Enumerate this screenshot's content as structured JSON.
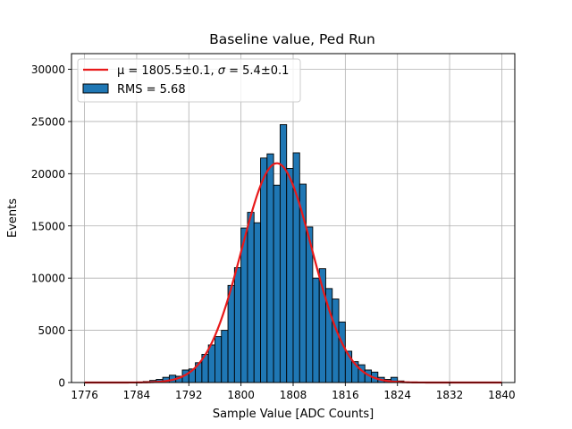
{
  "chart_data": {
    "type": "bar",
    "title": "Baseline value, Ped Run",
    "xlabel": "Sample Value [ADC Counts]",
    "ylabel": "Events",
    "xlim": [
      1774,
      1842
    ],
    "ylim": [
      0,
      31500
    ],
    "xticks": [
      1776,
      1784,
      1792,
      1800,
      1808,
      1816,
      1824,
      1832,
      1840
    ],
    "yticks": [
      0,
      5000,
      10000,
      15000,
      20000,
      25000,
      30000
    ],
    "grid": true,
    "legend_position": "top-left",
    "legend": {
      "fit_prefix": "μ = 1805.5±0.1, ",
      "fit_sigma_symbol": "σ",
      "fit_suffix": " = 5.4±0.1",
      "hist_label": "RMS = 5.68"
    },
    "histogram": {
      "bin_width": 1,
      "bin_starts": [
        1785,
        1786,
        1787,
        1788,
        1789,
        1790,
        1791,
        1792,
        1793,
        1794,
        1795,
        1796,
        1797,
        1798,
        1799,
        1800,
        1801,
        1802,
        1803,
        1804,
        1805,
        1806,
        1807,
        1808,
        1809,
        1810,
        1811,
        1812,
        1813,
        1814,
        1815,
        1816,
        1817,
        1818,
        1819,
        1820,
        1821,
        1822,
        1823,
        1824
      ],
      "counts": [
        100,
        200,
        300,
        500,
        700,
        600,
        1200,
        1300,
        1900,
        2700,
        3600,
        4400,
        5000,
        9300,
        11000,
        14800,
        16300,
        15300,
        21500,
        21900,
        18900,
        24700,
        20500,
        22000,
        19000,
        14900,
        10000,
        10900,
        9000,
        8000,
        5800,
        3000,
        2000,
        1700,
        1200,
        1000,
        500,
        300,
        500,
        150
      ],
      "color": "#1f77b4",
      "edge_color": "#000000"
    },
    "fit": {
      "mu": 1805.5,
      "sigma": 5.4,
      "amplitude": 21000,
      "color": "#e8191a"
    }
  }
}
